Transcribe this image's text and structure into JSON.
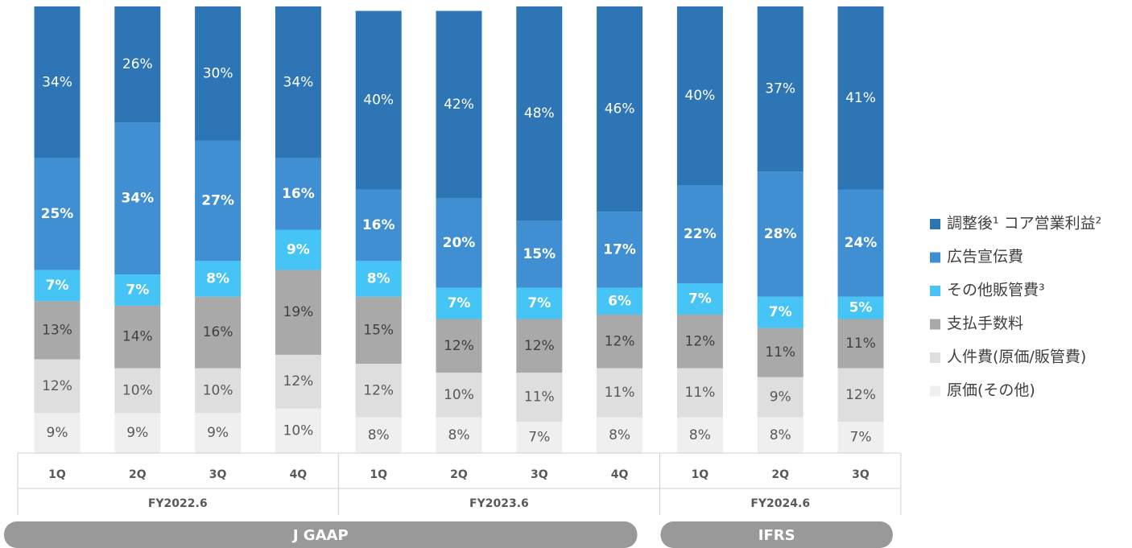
{
  "chart_data": {
    "type": "stacked_bar",
    "sections": [
      {
        "label": "J GAAP",
        "groups": [
          {
            "label": "FY2022.6",
            "categories": [
              "1Q",
              "2Q",
              "3Q",
              "4Q"
            ]
          },
          {
            "label": "FY2023.6",
            "categories": [
              "1Q",
              "2Q",
              "3Q",
              "4Q"
            ]
          }
        ]
      },
      {
        "label": "IFRS",
        "groups": [
          {
            "label": "FY2024.6",
            "categories": [
              "1Q",
              "2Q",
              "3Q"
            ]
          }
        ]
      }
    ],
    "ylim": [
      0,
      100
    ],
    "series": [
      {
        "name": "原価(その他)",
        "color": "#efefef",
        "text_color": "#595959",
        "values": [
          9,
          9,
          9,
          10,
          8,
          8,
          7,
          8,
          8,
          8,
          7
        ],
        "value_labels": [
          "9%",
          "9%",
          "9%",
          "10%",
          "8%",
          "8%",
          "7%",
          "8%",
          "8%",
          "8%",
          "7%"
        ]
      },
      {
        "name": "人件費(原価/販管費)",
        "color": "#dedede",
        "text_color": "#595959",
        "values": [
          12,
          10,
          10,
          12,
          12,
          10,
          11,
          11,
          11,
          9,
          12
        ],
        "value_labels": [
          "12%",
          "10%",
          "10%",
          "12%",
          "12%",
          "10%",
          "11%",
          "11%",
          "11%",
          "9%",
          "12%"
        ]
      },
      {
        "name": "支払手数料",
        "color": "#a9a9a9",
        "text_color": "#404040",
        "values": [
          13,
          14,
          16,
          19,
          15,
          12,
          12,
          12,
          12,
          11,
          11
        ],
        "value_labels": [
          "13%",
          "14%",
          "16%",
          "19%",
          "15%",
          "12%",
          "12%",
          "12%",
          "12%",
          "11%",
          "11%"
        ]
      },
      {
        "name": "その他販管費³",
        "color": "#45c4f5",
        "text_color": "#ffffff",
        "values": [
          7,
          7,
          8,
          9,
          8,
          7,
          7,
          6,
          7,
          7,
          5
        ],
        "value_labels": [
          "7%",
          "7%",
          "8%",
          "9%",
          "8%",
          "7%",
          "7%",
          "6%",
          "7%",
          "7%",
          "5%"
        ]
      },
      {
        "name": "広告宣伝費",
        "color": "#3f8fd2",
        "text_color": "#ffffff",
        "values": [
          25,
          34,
          27,
          16,
          16,
          20,
          15,
          17,
          22,
          28,
          24
        ],
        "value_labels": [
          "25%",
          "34%",
          "27%",
          "16%",
          "16%",
          "20%",
          "15%",
          "17%",
          "22%",
          "28%",
          "24%"
        ]
      },
      {
        "name": "調整後¹ コア営業利益²",
        "color": "#2e75b6",
        "text_color": "#ffffff",
        "values": [
          34,
          26,
          30,
          34,
          40,
          42,
          48,
          46,
          40,
          37,
          41
        ],
        "value_labels": [
          "34%",
          "26%",
          "30%",
          "34%",
          "40%",
          "42%",
          "48%",
          "46%",
          "40%",
          "37%",
          "41%"
        ]
      }
    ]
  }
}
